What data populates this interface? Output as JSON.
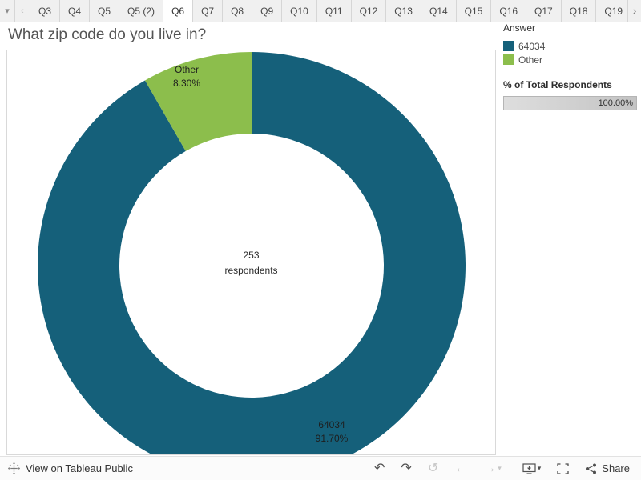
{
  "tab_bar": {
    "icons": {
      "dropdown": "▾",
      "scroll_left": "‹",
      "scroll_right": "›"
    },
    "tabs": [
      "Q3",
      "Q4",
      "Q5",
      "Q5 (2)",
      "Q6",
      "Q7",
      "Q8",
      "Q9",
      "Q10",
      "Q11",
      "Q12",
      "Q13",
      "Q14",
      "Q15",
      "Q16",
      "Q17",
      "Q18",
      "Q19"
    ],
    "active": "Q6"
  },
  "title": "What zip code do you live in?",
  "chart_data": {
    "type": "pie",
    "donut": true,
    "title": "What zip code do you live in?",
    "slices": [
      {
        "label": "64034",
        "value_pct": 91.7,
        "pct_label": "91.70%",
        "color": "#15607a"
      },
      {
        "label": "Other",
        "value_pct": 8.3,
        "pct_label": "8.30%",
        "color": "#8cbe4c"
      }
    ],
    "center": {
      "value": "253",
      "caption": "respondents"
    },
    "legend_position": "right"
  },
  "legend": {
    "answer_title": "Answer",
    "items": [
      {
        "label": "64034",
        "color": "#15607a"
      },
      {
        "label": "Other",
        "color": "#8cbe4c"
      }
    ],
    "pct_total_title": "% of Total Respondents",
    "pct_total_value": "100.00%"
  },
  "footer": {
    "view_label": "View on Tableau Public",
    "share_label": "Share",
    "icons": {
      "undo": "↶",
      "redo": "↷",
      "replay": "↺",
      "back": "←",
      "forward": "→",
      "caret": "▾"
    }
  }
}
